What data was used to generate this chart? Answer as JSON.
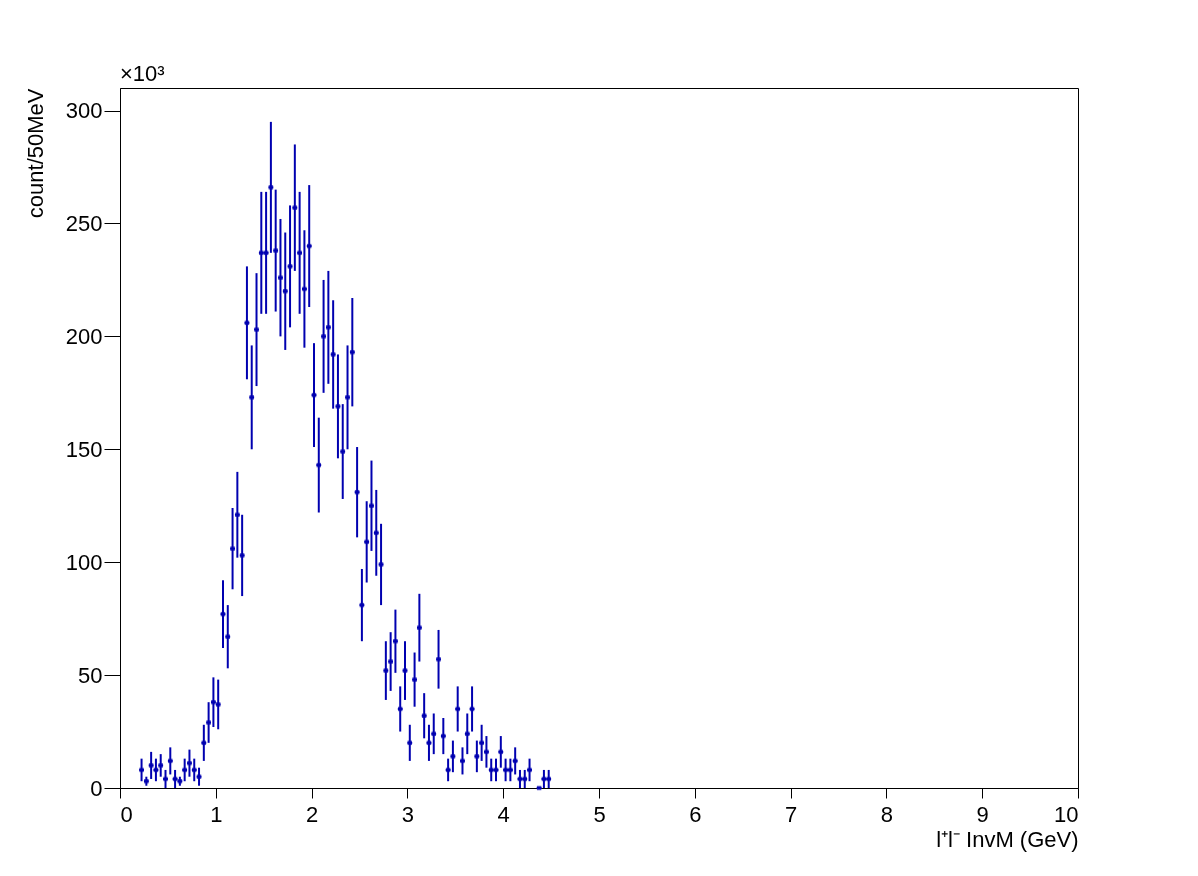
{
  "chart_data": {
    "type": "scatter",
    "xlabel": "l⁺l⁻ InvM (GeV)",
    "ylabel": "count/50MeV",
    "annotations": [
      "×10³"
    ],
    "x": [
      0.225,
      0.275,
      0.325,
      0.375,
      0.425,
      0.475,
      0.525,
      0.575,
      0.625,
      0.675,
      0.725,
      0.775,
      0.825,
      0.875,
      0.925,
      0.975,
      1.025,
      1.075,
      1.125,
      1.175,
      1.225,
      1.275,
      1.325,
      1.375,
      1.425,
      1.475,
      1.525,
      1.575,
      1.625,
      1.675,
      1.725,
      1.775,
      1.825,
      1.875,
      1.925,
      1.975,
      2.025,
      2.075,
      2.125,
      2.175,
      2.225,
      2.275,
      2.325,
      2.375,
      2.425,
      2.475,
      2.525,
      2.575,
      2.625,
      2.675,
      2.725,
      2.775,
      2.825,
      2.875,
      2.925,
      2.975,
      3.025,
      3.075,
      3.125,
      3.175,
      3.225,
      3.275,
      3.325,
      3.375,
      3.425,
      3.475,
      3.525,
      3.575,
      3.625,
      3.675,
      3.725,
      3.775,
      3.825,
      3.875,
      3.925,
      3.975,
      4.025,
      4.075,
      4.125,
      4.175,
      4.225,
      4.275,
      4.325,
      4.375,
      4.425,
      4.475
    ],
    "series": [
      {
        "color": "#0000b0",
        "values": [
          8,
          3,
          10,
          8,
          10,
          4,
          12,
          4,
          3,
          8,
          11,
          8,
          5,
          20,
          29,
          38,
          37,
          77,
          67,
          106,
          121,
          103,
          206,
          173,
          203,
          237,
          237,
          266,
          238,
          226,
          220,
          231,
          257,
          237,
          221,
          240,
          174,
          143,
          200,
          204,
          192,
          169,
          149,
          173,
          193,
          131,
          81,
          109,
          125,
          113,
          99,
          52,
          56,
          65,
          35,
          52,
          20,
          48,
          71,
          32,
          20,
          24,
          57,
          23,
          8,
          14,
          35,
          12,
          24,
          35,
          14,
          20,
          16,
          8,
          8,
          16,
          8,
          8,
          12,
          4,
          4,
          8,
          null,
          0,
          4,
          4
        ],
        "errors": [
          5,
          2,
          6,
          5,
          5,
          4,
          6,
          4,
          2,
          5,
          6,
          5,
          4,
          8,
          9,
          11,
          11,
          15,
          14,
          18,
          19,
          18,
          25,
          23,
          25,
          27,
          27,
          29,
          27,
          26,
          26,
          27,
          28,
          27,
          26,
          27,
          23,
          21,
          25,
          25,
          24,
          23,
          21,
          23,
          24,
          20,
          16,
          18,
          20,
          19,
          18,
          13,
          13,
          14,
          10,
          13,
          8,
          12,
          15,
          10,
          8,
          9,
          13,
          8,
          5,
          7,
          10,
          6,
          9,
          10,
          7,
          8,
          7,
          5,
          5,
          7,
          5,
          5,
          6,
          4,
          4,
          5,
          null,
          null,
          4,
          4
        ],
        "xerrors": [
          0.025,
          0.025,
          0.025,
          0.025,
          0.025,
          0.025,
          0.025,
          0.025,
          0.025,
          0.025,
          0.025,
          0.025,
          0.025,
          0.025,
          0.025,
          0.025,
          0.025,
          0.025,
          0.025,
          0.025,
          0.025,
          0.025,
          0.025,
          0.025,
          0.025,
          0.025,
          0.025,
          0.025,
          0.025,
          0.025,
          0.025,
          0.025,
          0.025,
          0.025,
          0.025,
          0.025,
          0.025,
          0.025,
          0.025,
          0.025,
          0.025,
          0.025,
          0.025,
          0.025,
          0.025,
          0.025,
          0.025,
          0.025,
          0.025,
          0.025,
          0.025,
          0.025,
          0.025,
          0.025,
          0.025,
          0.025,
          0.025,
          0.025,
          0.025,
          0.025,
          0.025,
          0.025,
          0.025,
          0.025,
          0.025,
          0.025,
          0.025,
          0.025,
          0.025,
          0.025,
          0.025,
          0.025,
          0.025,
          0.025,
          0.025,
          0.025,
          0.025,
          0.025,
          0.025,
          0.025,
          0.025,
          0.025,
          null,
          0.025,
          0.025,
          0.025
        ]
      }
    ],
    "xlim": [
      0,
      10
    ],
    "xticks": [
      0,
      1,
      2,
      3,
      4,
      5,
      6,
      7,
      8,
      9,
      10
    ],
    "ylim": [
      0,
      310
    ],
    "yticks": [
      0,
      50,
      100,
      150,
      200,
      250,
      300
    ],
    "grid": false,
    "marker": "square"
  }
}
